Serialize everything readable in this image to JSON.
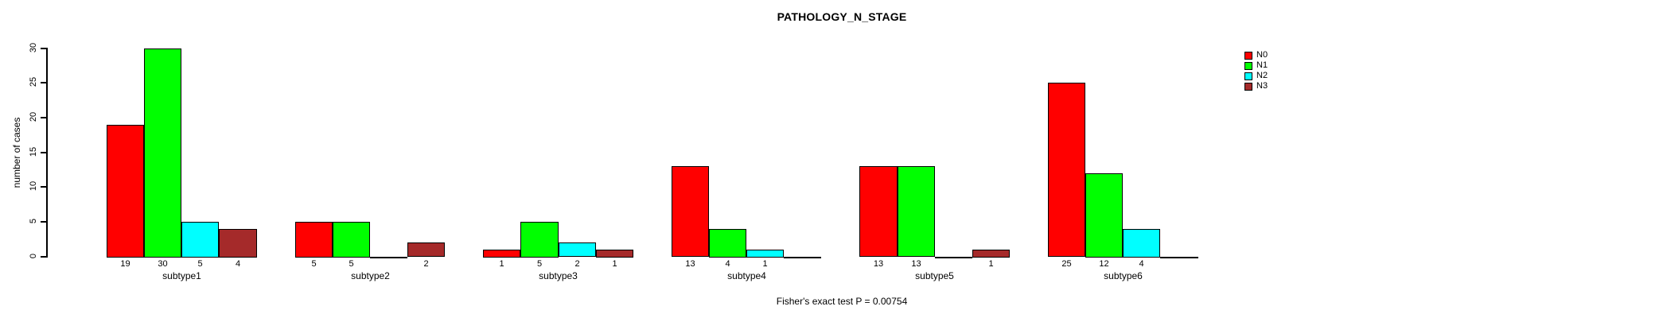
{
  "chart_data": {
    "type": "bar",
    "title": "PATHOLOGY_N_STAGE",
    "ylabel": "number of cases",
    "xlabel": "",
    "footnote": "Fisher's exact test P = 0.00754",
    "categories": [
      "subtype1",
      "subtype2",
      "subtype3",
      "subtype4",
      "subtype5",
      "subtype6"
    ],
    "series": [
      {
        "name": "N0",
        "color": "#ff0000",
        "values": [
          19,
          5,
          1,
          13,
          13,
          25
        ]
      },
      {
        "name": "N1",
        "color": "#00ff00",
        "values": [
          30,
          5,
          5,
          4,
          13,
          12
        ]
      },
      {
        "name": "N2",
        "color": "#00ffff",
        "values": [
          5,
          0,
          2,
          1,
          0,
          4
        ]
      },
      {
        "name": "N3",
        "color": "#a52a2a",
        "values": [
          4,
          2,
          1,
          0,
          1,
          0
        ]
      }
    ],
    "ylim": [
      0,
      30
    ],
    "yticks": [
      0,
      5,
      10,
      15,
      20,
      25,
      30
    ],
    "bar_value_labels_shown": true,
    "zero_values_drawn_as_baseline_segment": true,
    "legend_position": "top-right",
    "grid": false,
    "background": "#ffffff",
    "axis_color": "#000000"
  }
}
